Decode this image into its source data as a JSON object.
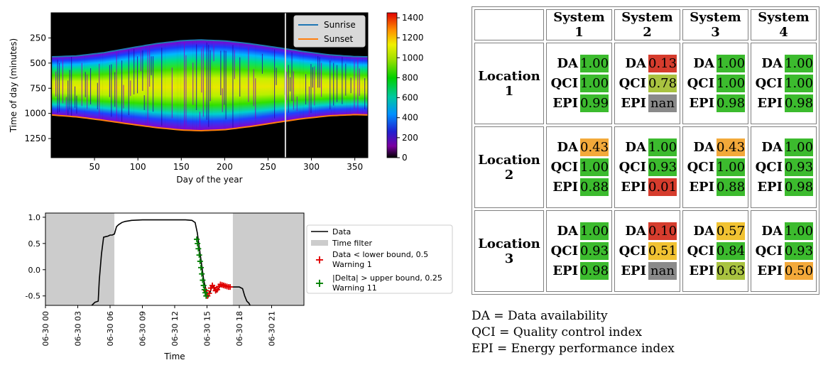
{
  "colors": {
    "green": "#3cbb2e",
    "red": "#d63c2d",
    "orange": "#f3a93a",
    "olive": "#a9c340",
    "yellow": "#f1c232",
    "gray": "#8a8a8a",
    "sunrise": "#1f77b4",
    "sunset": "#ff7f0e"
  },
  "chart_data": [
    {
      "type": "heatmap",
      "xlabel": "Day of the year",
      "ylabel": "Time of day (minutes)",
      "xlim": [
        0,
        365
      ],
      "ylim": [
        1440,
        0
      ],
      "xticks": [
        "50",
        "100",
        "150",
        "200",
        "250",
        "300",
        "350"
      ],
      "yticks": [
        "250",
        "500",
        "750",
        "1000",
        "1250"
      ],
      "colorbar": {
        "min": 0,
        "max": 1450,
        "ticks": [
          "0",
          "200",
          "400",
          "600",
          "800",
          "1000",
          "1200",
          "1400"
        ]
      },
      "legend": {
        "position": "top-right",
        "entries": [
          "Sunrise",
          "Sunset"
        ]
      },
      "series": [
        {
          "name": "Sunrise",
          "x": [
            1,
            30,
            60,
            90,
            120,
            150,
            172,
            200,
            230,
            260,
            290,
            320,
            350,
            365
          ],
          "y": [
            438,
            428,
            398,
            352,
            308,
            278,
            270,
            280,
            308,
            345,
            385,
            418,
            436,
            438
          ]
        },
        {
          "name": "Sunset",
          "x": [
            1,
            30,
            60,
            90,
            120,
            150,
            172,
            200,
            230,
            260,
            290,
            320,
            350,
            365
          ],
          "y": [
            1016,
            1035,
            1068,
            1105,
            1140,
            1165,
            1172,
            1162,
            1130,
            1090,
            1052,
            1024,
            1012,
            1016
          ]
        }
      ],
      "vline_x": 270
    },
    {
      "type": "line",
      "xlabel": "Time",
      "xticks": [
        "06-30 00",
        "06-30 03",
        "06-30 06",
        "06-30 09",
        "06-30 12",
        "06-30 15",
        "06-30 18",
        "06-30 21"
      ],
      "yticks": [
        "1.0",
        "0.5",
        "0.0",
        "-0.5"
      ],
      "ylim": [
        -0.68,
        1.08
      ],
      "time_filter_spans": [
        [
          0,
          6.4
        ],
        [
          17.4,
          24
        ]
      ],
      "legend": {
        "position": "right-outside",
        "entries": [
          "Data",
          "Time filter",
          "Data < lower bound, 0.5",
          "Warning 1",
          "|Delta| > upper bound, 0.25",
          "Warning 11"
        ]
      },
      "series": [
        {
          "name": "Data",
          "x": [
            4.3,
            4.6,
            4.9,
            5.0,
            5.2,
            5.4,
            5.6,
            5.8,
            6.0,
            6.2,
            6.4,
            6.6,
            6.8,
            7.1,
            7.4,
            7.7,
            8.0,
            9.0,
            10.0,
            11.0,
            12.0,
            13.0,
            13.6,
            13.9,
            14.1,
            14.3,
            14.5,
            14.7,
            14.9,
            15.1,
            15.3,
            15.5,
            15.7,
            15.9,
            16.2,
            16.5,
            16.8,
            17.1,
            17.4,
            17.7,
            18.0,
            18.3,
            18.5,
            18.7,
            18.9,
            19.0
          ],
          "y": [
            -0.68,
            -0.62,
            -0.6,
            -0.2,
            0.3,
            0.62,
            0.63,
            0.64,
            0.66,
            0.66,
            0.68,
            0.82,
            0.86,
            0.9,
            0.92,
            0.93,
            0.94,
            0.95,
            0.95,
            0.95,
            0.95,
            0.95,
            0.94,
            0.9,
            0.7,
            0.4,
            0.1,
            -0.2,
            -0.38,
            -0.52,
            -0.42,
            -0.3,
            -0.36,
            -0.42,
            -0.32,
            -0.28,
            -0.31,
            -0.33,
            -0.33,
            -0.33,
            -0.33,
            -0.36,
            -0.5,
            -0.6,
            -0.64,
            -0.68
          ]
        },
        {
          "name": "Data < lower bound, 0.5",
          "marker": "red-plus",
          "x": [
            14.9,
            15.05,
            15.2,
            15.35,
            15.5,
            15.65,
            15.8,
            15.95,
            16.1,
            16.25,
            16.4,
            16.55,
            16.7,
            16.85,
            17.0,
            17.15
          ],
          "y": [
            -0.4,
            -0.5,
            -0.45,
            -0.35,
            -0.3,
            -0.34,
            -0.4,
            -0.38,
            -0.32,
            -0.28,
            -0.29,
            -0.3,
            -0.31,
            -0.32,
            -0.33,
            -0.33
          ]
        },
        {
          "name": "|Delta| > upper bound, 0.25",
          "marker": "green-plus",
          "x": [
            14.05,
            14.12,
            14.2,
            14.28,
            14.36,
            14.44,
            14.52,
            14.6,
            14.68,
            14.76,
            14.84,
            14.92
          ],
          "y": [
            0.58,
            0.5,
            0.4,
            0.28,
            0.16,
            0.04,
            -0.08,
            -0.2,
            -0.3,
            -0.38,
            -0.44,
            -0.5
          ]
        }
      ]
    }
  ],
  "metrics_table": {
    "headers": [
      "System 1",
      "System 2",
      "System 3",
      "System 4"
    ],
    "labels": [
      "DA",
      "QCI",
      "EPI"
    ],
    "locations": [
      {
        "name": "Location 1",
        "systems": [
          [
            {
              "v": "1.00",
              "c": "green"
            },
            {
              "v": "1.00",
              "c": "green"
            },
            {
              "v": "0.99",
              "c": "green"
            }
          ],
          [
            {
              "v": "0.13",
              "c": "red"
            },
            {
              "v": "0.78",
              "c": "olive"
            },
            {
              "v": "nan",
              "c": "gray"
            }
          ],
          [
            {
              "v": "1.00",
              "c": "green"
            },
            {
              "v": "1.00",
              "c": "green"
            },
            {
              "v": "0.98",
              "c": "green"
            }
          ],
          [
            {
              "v": "1.00",
              "c": "green"
            },
            {
              "v": "1.00",
              "c": "green"
            },
            {
              "v": "0.98",
              "c": "green"
            }
          ]
        ]
      },
      {
        "name": "Location 2",
        "systems": [
          [
            {
              "v": "0.43",
              "c": "orange"
            },
            {
              "v": "1.00",
              "c": "green"
            },
            {
              "v": "0.88",
              "c": "green"
            }
          ],
          [
            {
              "v": "1.00",
              "c": "green"
            },
            {
              "v": "0.93",
              "c": "green"
            },
            {
              "v": "0.01",
              "c": "red"
            }
          ],
          [
            {
              "v": "0.43",
              "c": "orange"
            },
            {
              "v": "1.00",
              "c": "green"
            },
            {
              "v": "0.88",
              "c": "green"
            }
          ],
          [
            {
              "v": "1.00",
              "c": "green"
            },
            {
              "v": "0.93",
              "c": "green"
            },
            {
              "v": "0.98",
              "c": "green"
            }
          ]
        ]
      },
      {
        "name": "Location 3",
        "systems": [
          [
            {
              "v": "1.00",
              "c": "green"
            },
            {
              "v": "0.93",
              "c": "green"
            },
            {
              "v": "0.98",
              "c": "green"
            }
          ],
          [
            {
              "v": "0.10",
              "c": "red"
            },
            {
              "v": "0.51",
              "c": "yellow"
            },
            {
              "v": "nan",
              "c": "gray"
            }
          ],
          [
            {
              "v": "0.57",
              "c": "yellow"
            },
            {
              "v": "0.84",
              "c": "green"
            },
            {
              "v": "0.63",
              "c": "olive"
            }
          ],
          [
            {
              "v": "1.00",
              "c": "green"
            },
            {
              "v": "0.93",
              "c": "green"
            },
            {
              "v": "0.50",
              "c": "orange"
            }
          ]
        ]
      }
    ]
  },
  "legend_text": [
    "DA = Data availability",
    "QCI = Quality control index",
    "EPI = Energy performance index"
  ]
}
